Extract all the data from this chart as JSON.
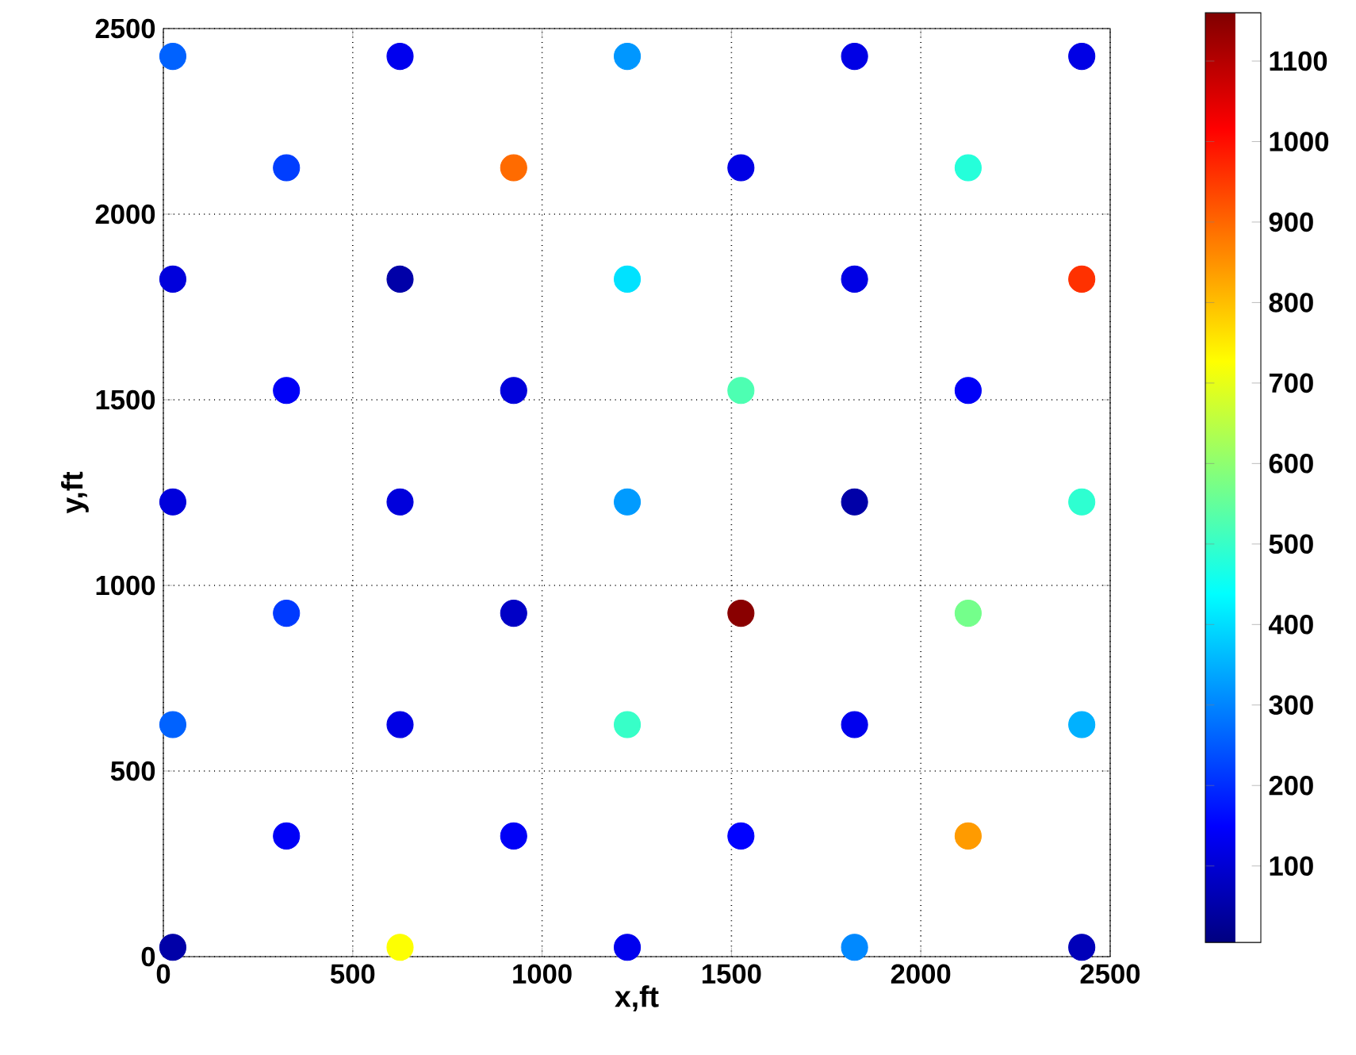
{
  "chart_data": {
    "type": "scatter",
    "xlabel": "x,ft",
    "ylabel": "y,ft",
    "xlim": [
      0,
      2500
    ],
    "ylim": [
      0,
      2500
    ],
    "xticks": [
      0,
      500,
      1000,
      1500,
      2000,
      2500
    ],
    "yticks": [
      0,
      500,
      1000,
      1500,
      2000,
      2500
    ],
    "clim": [
      5,
      1160
    ],
    "cticks": [
      100,
      200,
      300,
      400,
      500,
      600,
      700,
      800,
      900,
      1000,
      1100
    ],
    "grid": true,
    "marker": "circle",
    "series": [
      {
        "x": [
          25,
          625,
          1225,
          1825,
          2425,
          325,
          925,
          1525,
          2125,
          25,
          625,
          1225,
          1825,
          2425,
          325,
          925,
          1525,
          2125,
          25,
          625,
          1225,
          1825,
          2425,
          325,
          925,
          1525,
          2125,
          25,
          625,
          1225,
          1825,
          2425,
          325,
          925,
          1525,
          2125,
          25,
          625,
          1225,
          1825,
          2425
        ],
        "values": [
          2425,
          2425,
          2425,
          2425,
          2425,
          2125,
          2125,
          2125,
          2125,
          1825,
          1825,
          1825,
          1825,
          1825,
          1525,
          1525,
          1525,
          1525,
          1225,
          1225,
          1225,
          1225,
          1225,
          925,
          925,
          925,
          925,
          625,
          625,
          625,
          625,
          625,
          325,
          325,
          325,
          325,
          25,
          25,
          25,
          25,
          25
        ],
        "cvalues": [
          260,
          130,
          320,
          120,
          120,
          220,
          895,
          120,
          480,
          110,
          50,
          405,
          120,
          960,
          140,
          110,
          525,
          140,
          110,
          110,
          325,
          50,
          490,
          215,
          85,
          1150,
          570,
          260,
          120,
          500,
          130,
          350,
          140,
          140,
          150,
          840,
          50,
          725,
          130,
          305,
          70
        ]
      }
    ]
  }
}
